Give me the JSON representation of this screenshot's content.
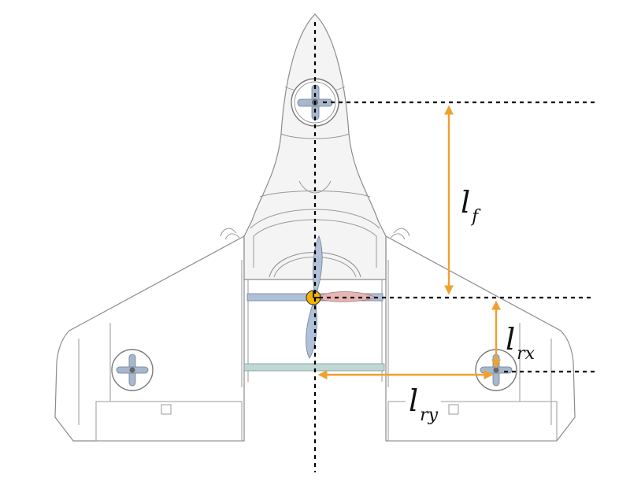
{
  "diagram": {
    "labels": {
      "lf": {
        "main": "l",
        "sub": "f"
      },
      "lrx": {
        "main": "l",
        "sub": "rx"
      },
      "lry": {
        "main": "l",
        "sub": "ry"
      }
    },
    "colors": {
      "dimension_arrow": "#f0a030",
      "dashed_line": "#000000",
      "outline": "#8c8c8c",
      "fuselage_fill": "#f4f4f4",
      "cg_marker": "#f2b400",
      "rotor_blade": "#a8b8cc",
      "pusher_blade_red": "#e8b4b4",
      "pusher_blade_blue": "#b0c0d8",
      "rod_fill": "#bfd8d4"
    }
  }
}
